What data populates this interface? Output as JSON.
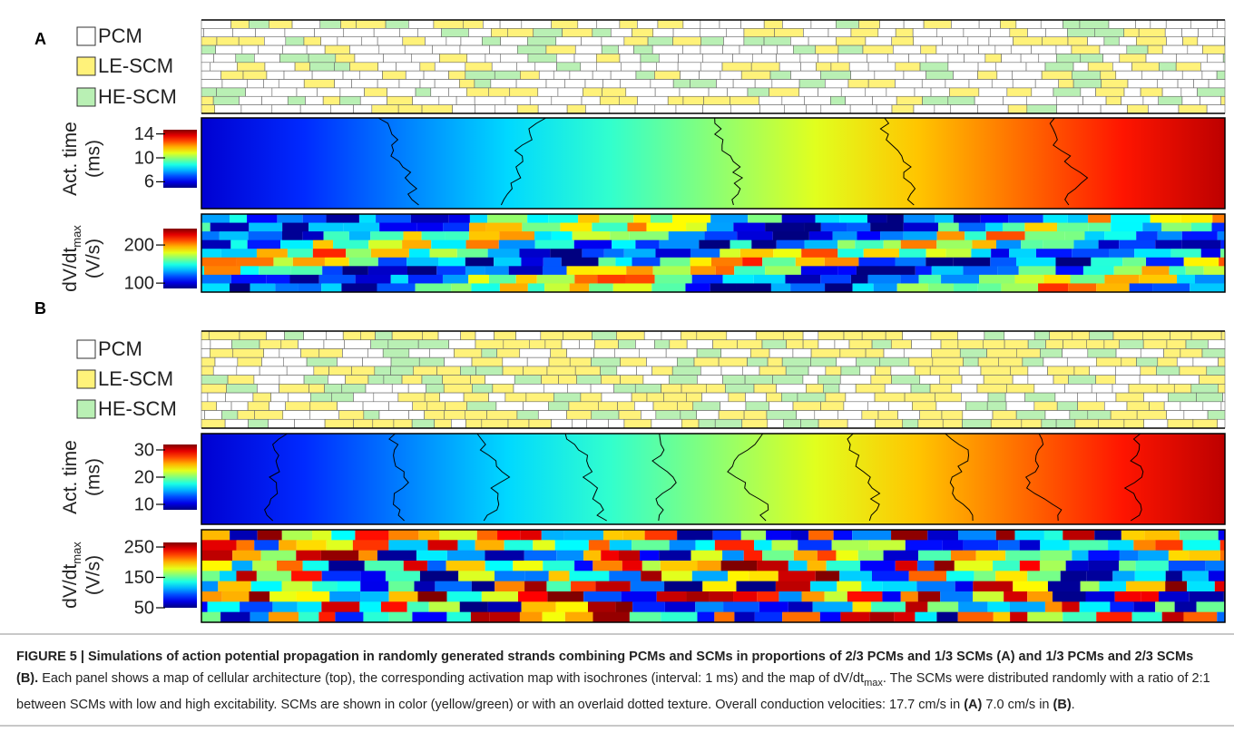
{
  "panels": [
    {
      "label": "A",
      "legend": [
        {
          "name": "PCM",
          "color": "#ffffff"
        },
        {
          "name": "LE-SCM",
          "color": "#fff27a"
        },
        {
          "name": "HE-SCM",
          "color": "#b9f0b4"
        }
      ],
      "colorbars": [
        {
          "title": "Act. time",
          "unit": "(ms)",
          "lim": [
            5,
            14.7
          ],
          "ticks": [
            6,
            10,
            14
          ]
        },
        {
          "title": "dV/dt",
          "title_sub": "max",
          "unit": "(V/s)",
          "lim": [
            86,
            243
          ],
          "ticks": [
            100,
            200
          ]
        }
      ]
    },
    {
      "label": "B",
      "legend": [
        {
          "name": "PCM",
          "color": "#ffffff"
        },
        {
          "name": "LE-SCM",
          "color": "#fff27a"
        },
        {
          "name": "HE-SCM",
          "color": "#b9f0b4"
        }
      ],
      "colorbars": [
        {
          "title": "Act. time",
          "unit": "(ms)",
          "lim": [
            8,
            32
          ],
          "ticks": [
            10,
            20,
            30
          ]
        },
        {
          "title": "dV/dt",
          "title_sub": "max",
          "unit": "(V/s)",
          "lim": [
            50,
            265
          ],
          "ticks": [
            50,
            150,
            250
          ]
        }
      ]
    }
  ],
  "caption": [
    {
      "text": "FIGURE 5 | Simulations of action potential propagation in randomly generated strands combining PCMs and SCMs in proportions of 2/3 PCMs and 1/3 SCMs (A) and 1/3 PCMs and 2/3 SCMs (B).",
      "bold": true
    },
    {
      "text": " Each panel shows a map of cellular architecture (top), the corresponding activation map with isochrones (interval: 1 ms) and the map of dV/dt",
      "bold": false
    },
    {
      "text": "max",
      "bold": false,
      "sub": true
    },
    {
      "text": ". The SCMs were distributed randomly with a ratio of 2:1 between SCMs with low and high excitability. SCMs are shown in color (yellow/green) or with an overlaid dotted texture. Overall conduction velocities: 17.7 cm/s in ",
      "bold": false
    },
    {
      "text": "(A)",
      "bold": true
    },
    {
      "text": " 7.0 cm/s in ",
      "bold": false
    },
    {
      "text": "(B)",
      "bold": true
    },
    {
      "text": ".",
      "bold": false
    }
  ]
}
